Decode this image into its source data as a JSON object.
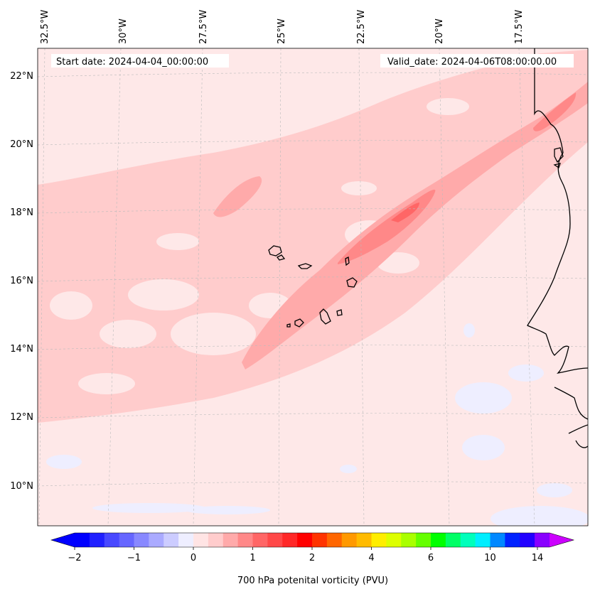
{
  "map": {
    "start_date": "Start date: 2024-04-04_00:00:00",
    "valid_date": "Valid_date: 2024-04-06T08:00:00.00",
    "lon_labels": [
      "32.5°W",
      "30°W",
      "27.5°W",
      "25°W",
      "22.5°W",
      "20°W",
      "17.5°W"
    ],
    "lat_labels": [
      "22°N",
      "20°N",
      "18°N",
      "16°N",
      "14°N",
      "12°N",
      "10°N"
    ],
    "background_color": "#fee8e8",
    "coast_color": "#000000"
  },
  "colorbar": {
    "label": "700 hPa potenital vorticity (PVU)",
    "ticks": [
      "−2",
      "−1",
      "0",
      "1",
      "2",
      "4",
      "6",
      "10",
      "14"
    ],
    "colors": [
      "#0000ff",
      "#2020ff",
      "#4848ff",
      "#6666ff",
      "#8888ff",
      "#aaaaff",
      "#ccccff",
      "#eeeeff",
      "#ffe4e4",
      "#ffcccc",
      "#ffaaaa",
      "#ff8888",
      "#ff6666",
      "#ff4848",
      "#ff2828",
      "#ff0000",
      "#ff3300",
      "#ff6600",
      "#ff9900",
      "#ffbb00",
      "#ffee00",
      "#ddff00",
      "#aaff00",
      "#66ff00",
      "#00ff00",
      "#00ff66",
      "#00ffbb",
      "#00eeff",
      "#0088ff",
      "#0022ff",
      "#2200ff",
      "#8800ff"
    ],
    "under_color": "#0000ff",
    "over_color": "#cc00ff"
  }
}
